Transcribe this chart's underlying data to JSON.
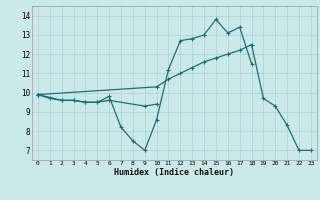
{
  "xlabel": "Humidex (Indice chaleur)",
  "xlim": [
    -0.5,
    23.5
  ],
  "ylim": [
    6.5,
    14.5
  ],
  "xticks": [
    0,
    1,
    2,
    3,
    4,
    5,
    6,
    7,
    8,
    9,
    10,
    11,
    12,
    13,
    14,
    15,
    16,
    17,
    18,
    19,
    20,
    21,
    22,
    23
  ],
  "yticks": [
    7,
    8,
    9,
    10,
    11,
    12,
    13,
    14
  ],
  "bg_color": "#cce9ea",
  "grid_color": "#aad0d3",
  "line_color": "#1a7070",
  "series1_x": [
    0,
    1,
    2,
    3,
    4,
    5,
    6,
    7,
    8,
    9,
    10,
    11,
    12,
    13,
    14,
    15,
    16,
    17,
    18
  ],
  "series1_y": [
    9.9,
    9.7,
    9.6,
    9.6,
    9.5,
    9.5,
    9.8,
    8.2,
    7.5,
    7.0,
    8.6,
    11.2,
    12.7,
    12.8,
    13.0,
    13.8,
    13.1,
    13.4,
    11.5
  ],
  "series2_x": [
    0,
    10,
    11,
    12,
    13,
    14,
    15,
    16,
    17,
    18,
    19,
    20,
    21,
    22,
    23
  ],
  "series2_y": [
    9.9,
    10.3,
    10.7,
    11.0,
    11.3,
    11.6,
    11.8,
    12.0,
    12.2,
    12.5,
    9.7,
    9.3,
    8.3,
    7.0,
    7.0
  ],
  "series3_x": [
    0,
    2,
    3,
    4,
    5,
    6,
    9,
    10
  ],
  "series3_y": [
    9.9,
    9.6,
    9.6,
    9.5,
    9.5,
    9.6,
    9.3,
    9.4
  ]
}
